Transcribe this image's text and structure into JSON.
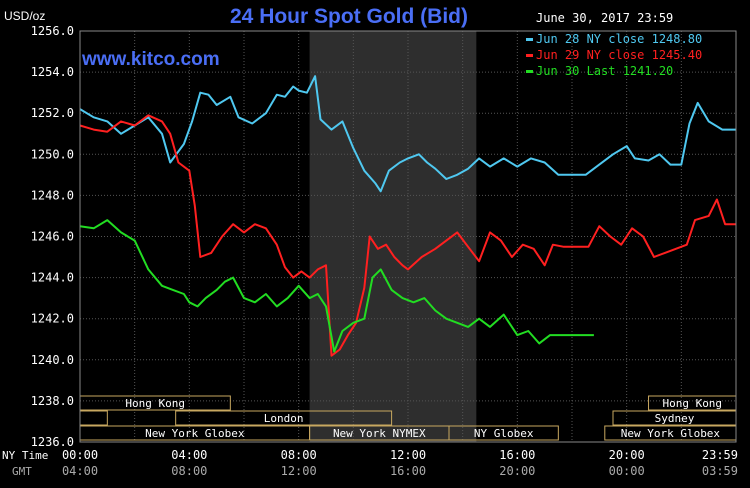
{
  "chart_data": {
    "type": "line",
    "title": "24 Hour Spot Gold (Bid)",
    "date_label": "June 30, 2017 23:59",
    "watermark": "www.kitco.com",
    "ylabel": "USD/oz",
    "ylim": [
      1236.0,
      1256.0
    ],
    "yticks": [
      "1256.0",
      "1254.0",
      "1252.0",
      "1250.0",
      "1248.0",
      "1246.0",
      "1244.0",
      "1242.0",
      "1240.0",
      "1238.0",
      "1236.0"
    ],
    "x_axis": {
      "ny_label": "NY Time",
      "gmt_label": "GMT",
      "ny_ticks": [
        "00:00",
        "04:00",
        "08:00",
        "12:00",
        "16:00",
        "20:00",
        "23:59"
      ],
      "gmt_ticks": [
        "04:00",
        "08:00",
        "12:00",
        "16:00",
        "20:00",
        "00:00",
        "03:59"
      ],
      "xlim_hours": [
        0,
        24
      ]
    },
    "shaded_session_hours": [
      8.4,
      14.5
    ],
    "legend": [
      {
        "text": "Jun 28 NY close 1248.80",
        "color": "#4fc8f0"
      },
      {
        "text": "Jun 29 NY close 1245.40",
        "color": "#ff2020"
      },
      {
        "text": "Jun 30 Last 1241.20",
        "color": "#22dd22"
      }
    ],
    "sessions": [
      {
        "label": "Hong Kong",
        "row": 0,
        "start": 0,
        "end": 5.5
      },
      {
        "label": "Hong Kong",
        "row": 0,
        "start": 20.8,
        "end": 24
      },
      {
        "label": "London",
        "row": 1,
        "start": 0,
        "end": 1.0
      },
      {
        "label": "London",
        "row": 1,
        "start": 3.5,
        "end": 11.4
      },
      {
        "label": "Sydney",
        "row": 1,
        "start": 19.5,
        "end": 24
      },
      {
        "label": "New York Globex",
        "row": 2,
        "start": 0,
        "end": 8.4
      },
      {
        "label": "New York NYMEX",
        "row": 2,
        "start": 8.4,
        "end": 13.5
      },
      {
        "label": "NY Globex",
        "row": 2,
        "start": 13.5,
        "end": 17.5
      },
      {
        "label": "New York Globex",
        "row": 2,
        "start": 19.2,
        "end": 24
      }
    ],
    "series": [
      {
        "name": "Jun 28",
        "color": "#4fc8f0",
        "points": [
          [
            0,
            1252.2
          ],
          [
            0.5,
            1251.8
          ],
          [
            1,
            1251.6
          ],
          [
            1.5,
            1251.0
          ],
          [
            2,
            1251.4
          ],
          [
            2.5,
            1251.8
          ],
          [
            3,
            1251.0
          ],
          [
            3.3,
            1249.6
          ],
          [
            3.8,
            1250.5
          ],
          [
            4.1,
            1251.6
          ],
          [
            4.4,
            1253.0
          ],
          [
            4.7,
            1252.9
          ],
          [
            5,
            1252.4
          ],
          [
            5.5,
            1252.8
          ],
          [
            5.8,
            1251.8
          ],
          [
            6.3,
            1251.5
          ],
          [
            6.8,
            1252.0
          ],
          [
            7.2,
            1252.9
          ],
          [
            7.5,
            1252.8
          ],
          [
            7.8,
            1253.3
          ],
          [
            8,
            1253.1
          ],
          [
            8.3,
            1253.0
          ],
          [
            8.6,
            1253.8
          ],
          [
            8.8,
            1251.7
          ],
          [
            9.2,
            1251.2
          ],
          [
            9.6,
            1251.6
          ],
          [
            10,
            1250.3
          ],
          [
            10.4,
            1249.2
          ],
          [
            10.8,
            1248.6
          ],
          [
            11,
            1248.2
          ],
          [
            11.3,
            1249.2
          ],
          [
            11.7,
            1249.6
          ],
          [
            12,
            1249.8
          ],
          [
            12.4,
            1250.0
          ],
          [
            12.7,
            1249.6
          ],
          [
            13,
            1249.3
          ],
          [
            13.4,
            1248.8
          ],
          [
            13.8,
            1249.0
          ],
          [
            14.2,
            1249.3
          ],
          [
            14.6,
            1249.8
          ],
          [
            15,
            1249.4
          ],
          [
            15.5,
            1249.8
          ],
          [
            16,
            1249.4
          ],
          [
            16.5,
            1249.8
          ],
          [
            17,
            1249.6
          ],
          [
            17.5,
            1249.0
          ],
          [
            18,
            1249.0
          ],
          [
            18.5,
            1249.0
          ],
          [
            19,
            1249.5
          ],
          [
            19.5,
            1250.0
          ],
          [
            20,
            1250.4
          ],
          [
            20.3,
            1249.8
          ],
          [
            20.8,
            1249.7
          ],
          [
            21.2,
            1250.0
          ],
          [
            21.6,
            1249.5
          ],
          [
            22,
            1249.5
          ],
          [
            22.3,
            1251.5
          ],
          [
            22.6,
            1252.5
          ],
          [
            23,
            1251.6
          ],
          [
            23.5,
            1251.2
          ],
          [
            24,
            1251.2
          ]
        ]
      },
      {
        "name": "Jun 29",
        "color": "#ff2020",
        "points": [
          [
            0,
            1251.4
          ],
          [
            0.5,
            1251.2
          ],
          [
            1,
            1251.1
          ],
          [
            1.5,
            1251.6
          ],
          [
            2,
            1251.4
          ],
          [
            2.5,
            1251.9
          ],
          [
            3,
            1251.6
          ],
          [
            3.3,
            1251.0
          ],
          [
            3.6,
            1249.6
          ],
          [
            4,
            1249.2
          ],
          [
            4.2,
            1247.5
          ],
          [
            4.4,
            1245.0
          ],
          [
            4.8,
            1245.2
          ],
          [
            5.2,
            1246.0
          ],
          [
            5.6,
            1246.6
          ],
          [
            6,
            1246.2
          ],
          [
            6.4,
            1246.6
          ],
          [
            6.8,
            1246.4
          ],
          [
            7.2,
            1245.6
          ],
          [
            7.5,
            1244.5
          ],
          [
            7.8,
            1244.0
          ],
          [
            8.1,
            1244.3
          ],
          [
            8.4,
            1244.0
          ],
          [
            8.7,
            1244.4
          ],
          [
            9,
            1244.6
          ],
          [
            9.2,
            1240.2
          ],
          [
            9.5,
            1240.5
          ],
          [
            9.8,
            1241.2
          ],
          [
            10.1,
            1241.8
          ],
          [
            10.4,
            1243.5
          ],
          [
            10.6,
            1246.0
          ],
          [
            10.9,
            1245.4
          ],
          [
            11.2,
            1245.6
          ],
          [
            11.5,
            1245.0
          ],
          [
            11.8,
            1244.6
          ],
          [
            12,
            1244.4
          ],
          [
            12.5,
            1245.0
          ],
          [
            13,
            1245.4
          ],
          [
            13.4,
            1245.8
          ],
          [
            13.8,
            1246.2
          ],
          [
            14.2,
            1245.5
          ],
          [
            14.6,
            1244.8
          ],
          [
            15,
            1246.2
          ],
          [
            15.4,
            1245.8
          ],
          [
            15.8,
            1245.0
          ],
          [
            16.2,
            1245.6
          ],
          [
            16.6,
            1245.4
          ],
          [
            17,
            1244.6
          ],
          [
            17.3,
            1245.6
          ],
          [
            17.7,
            1245.5
          ],
          [
            18.2,
            1245.5
          ],
          [
            18.6,
            1245.5
          ],
          [
            19,
            1246.5
          ],
          [
            19.4,
            1246.0
          ],
          [
            19.8,
            1245.6
          ],
          [
            20.2,
            1246.4
          ],
          [
            20.6,
            1246.0
          ],
          [
            21,
            1245.0
          ],
          [
            21.4,
            1245.2
          ],
          [
            21.8,
            1245.4
          ],
          [
            22.2,
            1245.6
          ],
          [
            22.5,
            1246.8
          ],
          [
            23,
            1247.0
          ],
          [
            23.3,
            1247.8
          ],
          [
            23.6,
            1246.6
          ],
          [
            24,
            1246.6
          ]
        ]
      },
      {
        "name": "Jun 30",
        "color": "#22dd22",
        "points": [
          [
            0,
            1246.5
          ],
          [
            0.5,
            1246.4
          ],
          [
            1,
            1246.8
          ],
          [
            1.5,
            1246.2
          ],
          [
            2,
            1245.8
          ],
          [
            2.5,
            1244.4
          ],
          [
            3,
            1243.6
          ],
          [
            3.4,
            1243.4
          ],
          [
            3.8,
            1243.2
          ],
          [
            4,
            1242.8
          ],
          [
            4.3,
            1242.6
          ],
          [
            4.6,
            1243.0
          ],
          [
            5,
            1243.4
          ],
          [
            5.3,
            1243.8
          ],
          [
            5.6,
            1244.0
          ],
          [
            6,
            1243.0
          ],
          [
            6.4,
            1242.8
          ],
          [
            6.8,
            1243.2
          ],
          [
            7.2,
            1242.6
          ],
          [
            7.6,
            1243.0
          ],
          [
            8,
            1243.6
          ],
          [
            8.4,
            1243.0
          ],
          [
            8.7,
            1243.2
          ],
          [
            9,
            1242.6
          ],
          [
            9.3,
            1240.4
          ],
          [
            9.6,
            1241.4
          ],
          [
            10,
            1241.8
          ],
          [
            10.4,
            1242.0
          ],
          [
            10.7,
            1244.0
          ],
          [
            11,
            1244.4
          ],
          [
            11.4,
            1243.4
          ],
          [
            11.8,
            1243.0
          ],
          [
            12.2,
            1242.8
          ],
          [
            12.6,
            1243.0
          ],
          [
            13,
            1242.4
          ],
          [
            13.4,
            1242.0
          ],
          [
            13.8,
            1241.8
          ],
          [
            14.2,
            1241.6
          ],
          [
            14.6,
            1242.0
          ],
          [
            15,
            1241.6
          ],
          [
            15.5,
            1242.2
          ],
          [
            16,
            1241.2
          ],
          [
            16.4,
            1241.4
          ],
          [
            16.8,
            1240.8
          ],
          [
            17.2,
            1241.2
          ],
          [
            17.6,
            1241.2
          ],
          [
            18,
            1241.2
          ],
          [
            18.4,
            1241.2
          ],
          [
            18.8,
            1241.2
          ]
        ]
      }
    ]
  }
}
